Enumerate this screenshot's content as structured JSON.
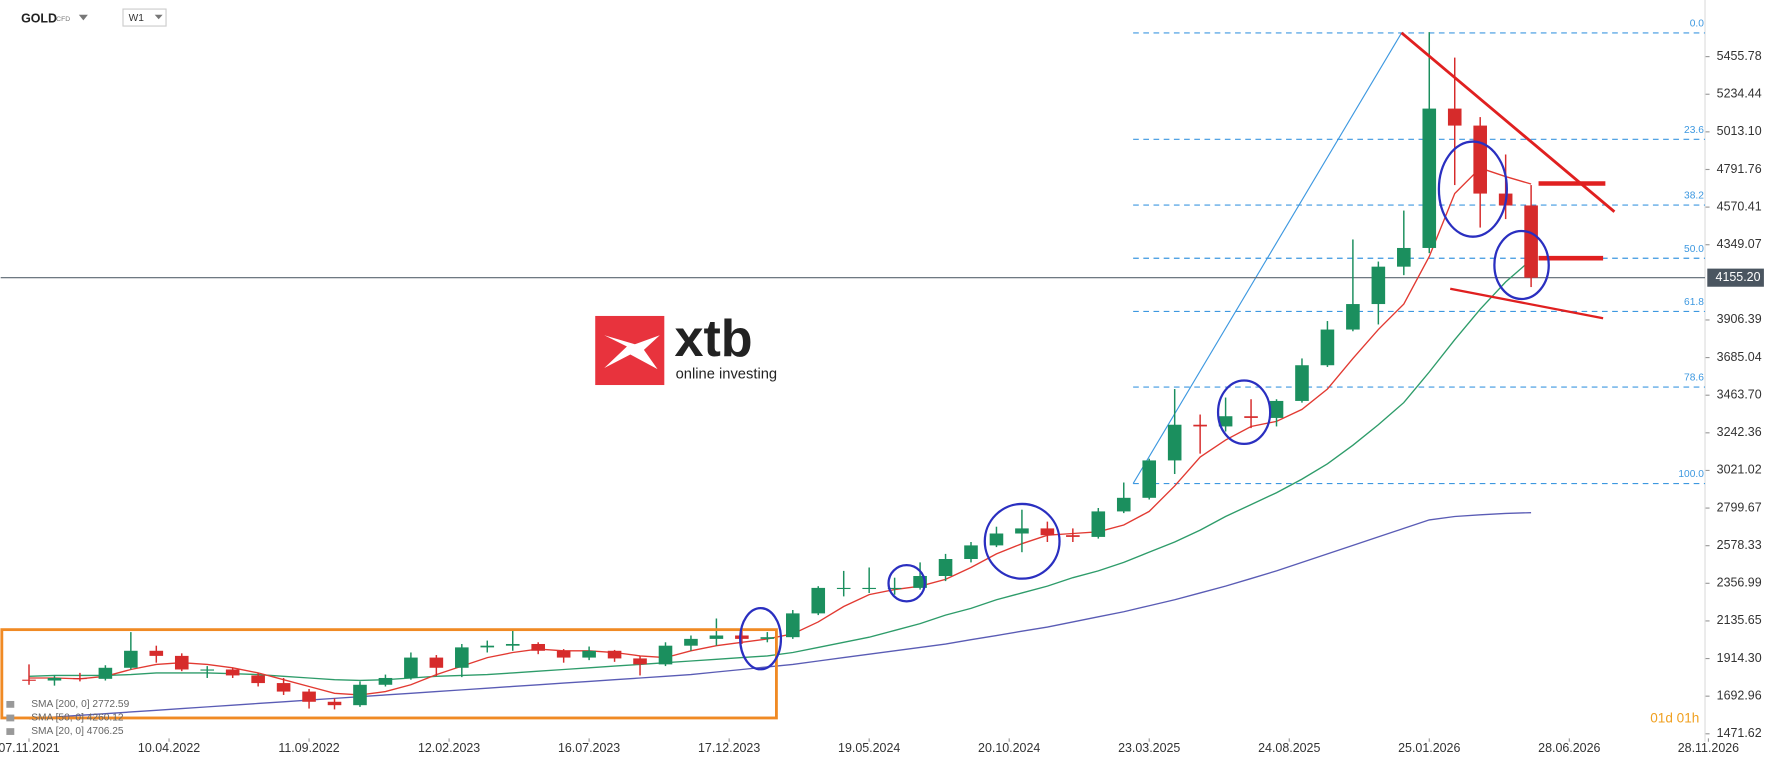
{
  "chart_data": {
    "type": "candlestick",
    "title": "GOLD",
    "subtitle": "CFD",
    "timeframe": "W1",
    "countdown": "01d 01h",
    "up_color": "#1b8f5e",
    "down_color": "#d62b2b",
    "x": [
      "07.11.2021",
      "05.12.2021",
      "02.01.2022",
      "30.01.2022",
      "27.02.2022",
      "27.03.2022",
      "24.04.2022",
      "22.05.2022",
      "19.06.2022",
      "17.07.2022",
      "14.08.2022",
      "11.09.2022",
      "09.10.2022",
      "06.11.2022",
      "04.12.2022",
      "01.01.2023",
      "29.01.2023",
      "26.02.2023",
      "26.03.2023",
      "23.04.2023",
      "21.05.2023",
      "18.06.2023",
      "16.07.2023",
      "13.08.2023",
      "10.09.2023",
      "08.10.2023",
      "05.11.2023",
      "03.12.2023",
      "31.12.2023",
      "28.01.2024",
      "25.02.2024",
      "24.03.2024",
      "21.04.2024",
      "19.05.2024",
      "16.06.2024",
      "14.07.2024",
      "11.08.2024",
      "08.09.2024",
      "06.10.2024",
      "03.11.2024",
      "01.12.2024",
      "29.12.2024",
      "26.01.2025",
      "23.02.2025",
      "23.03.2025",
      "20.04.2025",
      "18.05.2025",
      "15.06.2025",
      "13.07.2025",
      "10.08.2025",
      "07.09.2025",
      "05.10.2025",
      "02.11.2025",
      "30.11.2025",
      "28.12.2025",
      "25.01.2026",
      "22.02.2026",
      "22.03.2026",
      "19.04.2026",
      "17.05.2026"
    ],
    "open": [
      1790,
      1785,
      1800,
      1795,
      1860,
      1960,
      1930,
      1850,
      1850,
      1815,
      1770,
      1720,
      1660,
      1640,
      1760,
      1800,
      1920,
      1860,
      1980,
      1990,
      2000,
      1960,
      1920,
      1960,
      1915,
      1880,
      1990,
      2030,
      2050,
      2030,
      2040,
      2180,
      2330,
      2330,
      2330,
      2330,
      2400,
      2500,
      2580,
      2650,
      2680,
      2640,
      2630,
      2780,
      2860,
      3080,
      3290,
      3280,
      3340,
      3330,
      3430,
      3640,
      3850,
      4000,
      4220,
      4330,
      5150,
      5050,
      4650,
      4580
    ],
    "high": [
      1880,
      1815,
      1830,
      1875,
      2070,
      1990,
      1945,
      1870,
      1860,
      1830,
      1800,
      1735,
      1680,
      1780,
      1820,
      1950,
      1935,
      2000,
      2020,
      2080,
      2010,
      1970,
      1985,
      1965,
      1930,
      2010,
      2050,
      2150,
      2085,
      2070,
      2200,
      2340,
      2430,
      2450,
      2390,
      2480,
      2530,
      2600,
      2690,
      2790,
      2720,
      2680,
      2800,
      2950,
      3090,
      3500,
      3350,
      3450,
      3440,
      3440,
      3680,
      3900,
      4380,
      4250,
      4550,
      5600,
      5450,
      5100,
      4880,
      4700
    ],
    "low": [
      1760,
      1755,
      1780,
      1785,
      1850,
      1890,
      1840,
      1800,
      1800,
      1750,
      1700,
      1620,
      1615,
      1630,
      1750,
      1790,
      1810,
      1805,
      1950,
      1960,
      1940,
      1890,
      1905,
      1895,
      1815,
      1870,
      1960,
      1990,
      2000,
      2010,
      2030,
      2170,
      2280,
      2300,
      2290,
      2320,
      2370,
      2480,
      2570,
      2540,
      2600,
      2600,
      2620,
      2770,
      2850,
      3000,
      3120,
      3250,
      3270,
      3280,
      3420,
      3630,
      3840,
      3880,
      4170,
      4300,
      4700,
      4450,
      4500,
      4100
    ],
    "close": [
      1785,
      1800,
      1795,
      1860,
      1960,
      1930,
      1850,
      1850,
      1815,
      1770,
      1720,
      1660,
      1640,
      1760,
      1800,
      1920,
      1860,
      1980,
      1990,
      2000,
      1960,
      1920,
      1960,
      1915,
      1880,
      1990,
      2030,
      2050,
      2030,
      2040,
      2180,
      2330,
      2330,
      2330,
      2330,
      2400,
      2500,
      2580,
      2650,
      2680,
      2640,
      2630,
      2780,
      2860,
      3080,
      3290,
      3280,
      3340,
      3330,
      3430,
      3640,
      3850,
      4000,
      4220,
      4330,
      5150,
      5050,
      4650,
      4580,
      4155.2
    ],
    "series": [
      {
        "name": "SMA [200, 0] 2772.59",
        "color": "#5a5cb5",
        "values": [
          1560,
          1570,
          1580,
          1590,
          1600,
          1610,
          1620,
          1630,
          1640,
          1650,
          1660,
          1670,
          1680,
          1690,
          1700,
          1710,
          1720,
          1730,
          1740,
          1750,
          1760,
          1770,
          1780,
          1790,
          1800,
          1810,
          1820,
          1835,
          1850,
          1865,
          1880,
          1900,
          1920,
          1940,
          1960,
          1980,
          2000,
          2025,
          2050,
          2075,
          2100,
          2130,
          2160,
          2190,
          2225,
          2260,
          2300,
          2340,
          2385,
          2430,
          2480,
          2530,
          2580,
          2630,
          2680,
          2730,
          2750,
          2760,
          2768,
          2772.59
        ]
      },
      {
        "name": "SMA [50, 0] 4260.12",
        "color": "#2e9c6a",
        "values": [
          1810,
          1815,
          1815,
          1815,
          1820,
          1830,
          1830,
          1830,
          1825,
          1820,
          1810,
          1800,
          1790,
          1785,
          1790,
          1800,
          1810,
          1815,
          1820,
          1830,
          1840,
          1850,
          1860,
          1870,
          1880,
          1890,
          1900,
          1910,
          1920,
          1930,
          1950,
          1980,
          2010,
          2040,
          2080,
          2120,
          2170,
          2210,
          2260,
          2300,
          2340,
          2390,
          2430,
          2480,
          2540,
          2600,
          2670,
          2750,
          2820,
          2890,
          2970,
          3060,
          3170,
          3290,
          3420,
          3600,
          3790,
          3970,
          4130,
          4260.12
        ]
      },
      {
        "name": "SMA [20, 0] 4706.25",
        "color": "#e23a32",
        "values": [
          1800,
          1800,
          1795,
          1810,
          1850,
          1880,
          1890,
          1880,
          1860,
          1830,
          1790,
          1750,
          1710,
          1700,
          1720,
          1760,
          1820,
          1870,
          1920,
          1950,
          1970,
          1960,
          1960,
          1950,
          1930,
          1920,
          1960,
          1990,
          2010,
          2030,
          2060,
          2130,
          2220,
          2290,
          2320,
          2340,
          2380,
          2450,
          2530,
          2590,
          2640,
          2650,
          2660,
          2700,
          2780,
          2930,
          3100,
          3200,
          3280,
          3310,
          3380,
          3500,
          3680,
          3850,
          4000,
          4280,
          4650,
          4800,
          4750,
          4706.25
        ]
      }
    ],
    "ylim": [
      1424.8,
      5735.6
    ],
    "yticks": [
      1471.62,
      1692.96,
      {
        "value": 1914.3,
        "label": "1914.30"
      },
      2135.65,
      2356.99,
      2578.33,
      2799.67,
      3021.02,
      3242.36,
      {
        "value": 3463.7,
        "label": "3463.70"
      },
      3685.04,
      3906.39,
      4349.07,
      4570.41,
      4791.76,
      {
        "value": 5013.1,
        "label": "5013.10"
      },
      5234.44,
      5455.78
    ],
    "xticks": [
      "07.11.2021",
      "10.04.2022",
      "11.09.2022",
      "12.02.2023",
      "16.07.2023",
      "17.12.2023",
      "19.05.2024",
      "20.10.2024",
      "23.03.2025",
      "24.08.2025",
      "25.01.2026",
      "28.06.2026",
      "28.11.2026"
    ],
    "last_price": {
      "value": 4155.2,
      "label": "4155.20"
    },
    "fibonacci": {
      "color": "#3d98e0",
      "high": 5595,
      "low": 2944,
      "levels": [
        {
          "value": 0,
          "label": "0.0"
        },
        23.6,
        38.2,
        {
          "value": 50,
          "label": "50.0"
        },
        61.8,
        78.6,
        {
          "value": 100,
          "label": "100.0"
        }
      ]
    }
  },
  "logo": {
    "brand": "xtb",
    "tagline": "online investing"
  }
}
